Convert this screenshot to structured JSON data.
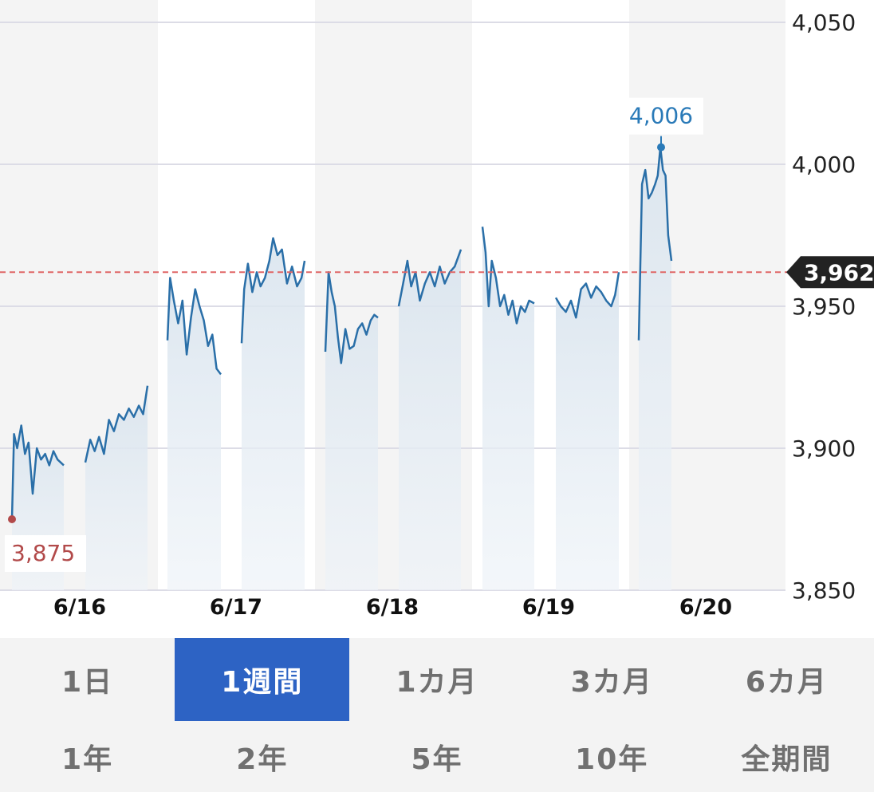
{
  "chart_data": {
    "type": "line",
    "y_ticks": [
      "4,050",
      "4,000",
      "3,950",
      "3,900",
      "3,850"
    ],
    "y_tick_values": [
      4050,
      4000,
      3950,
      3900,
      3850
    ],
    "ylim": [
      3850,
      4050
    ],
    "x_labels": [
      "6/16",
      "6/17",
      "6/18",
      "6/19",
      "6/20"
    ],
    "current_value": 3962,
    "current_label": "3,962",
    "high": {
      "value": 4006,
      "label": "4,006"
    },
    "low": {
      "value": 3875,
      "label": "3,875"
    },
    "grid": true,
    "line_color": "#2a6fa8",
    "high_color": "#2a7ab8",
    "low_color": "#b24a4a",
    "reference_line_color": "#e06666",
    "segments": [
      {
        "day": "6/16",
        "session": 1,
        "points": [
          [
            0,
            3875
          ],
          [
            0.04,
            3905
          ],
          [
            0.1,
            3900
          ],
          [
            0.18,
            3908
          ],
          [
            0.25,
            3898
          ],
          [
            0.32,
            3902
          ],
          [
            0.4,
            3884
          ],
          [
            0.48,
            3900
          ],
          [
            0.56,
            3896
          ],
          [
            0.64,
            3898
          ],
          [
            0.72,
            3894
          ],
          [
            0.8,
            3899
          ],
          [
            0.88,
            3896
          ],
          [
            1,
            3894
          ]
        ]
      },
      {
        "day": "6/16",
        "session": 2,
        "points": [
          [
            0,
            3895
          ],
          [
            0.08,
            3903
          ],
          [
            0.15,
            3899
          ],
          [
            0.22,
            3904
          ],
          [
            0.3,
            3898
          ],
          [
            0.38,
            3910
          ],
          [
            0.46,
            3906
          ],
          [
            0.54,
            3912
          ],
          [
            0.62,
            3910
          ],
          [
            0.7,
            3914
          ],
          [
            0.78,
            3911
          ],
          [
            0.86,
            3915
          ],
          [
            0.93,
            3912
          ],
          [
            1,
            3922
          ]
        ]
      },
      {
        "day": "6/17",
        "session": 1,
        "points": [
          [
            0,
            3938
          ],
          [
            0.05,
            3960
          ],
          [
            0.12,
            3952
          ],
          [
            0.2,
            3944
          ],
          [
            0.28,
            3952
          ],
          [
            0.36,
            3933
          ],
          [
            0.44,
            3946
          ],
          [
            0.52,
            3956
          ],
          [
            0.6,
            3950
          ],
          [
            0.68,
            3945
          ],
          [
            0.76,
            3936
          ],
          [
            0.84,
            3940
          ],
          [
            0.92,
            3928
          ],
          [
            1,
            3926
          ]
        ]
      },
      {
        "day": "6/17",
        "session": 2,
        "points": [
          [
            0,
            3937
          ],
          [
            0.04,
            3956
          ],
          [
            0.1,
            3965
          ],
          [
            0.17,
            3955
          ],
          [
            0.24,
            3962
          ],
          [
            0.3,
            3957
          ],
          [
            0.37,
            3960
          ],
          [
            0.44,
            3966
          ],
          [
            0.5,
            3974
          ],
          [
            0.57,
            3968
          ],
          [
            0.64,
            3970
          ],
          [
            0.72,
            3958
          ],
          [
            0.8,
            3964
          ],
          [
            0.88,
            3957
          ],
          [
            0.95,
            3960
          ],
          [
            1,
            3966
          ]
        ]
      },
      {
        "day": "6/18",
        "session": 1,
        "points": [
          [
            0,
            3934
          ],
          [
            0.06,
            3962
          ],
          [
            0.12,
            3955
          ],
          [
            0.18,
            3950
          ],
          [
            0.24,
            3939
          ],
          [
            0.3,
            3930
          ],
          [
            0.38,
            3942
          ],
          [
            0.46,
            3935
          ],
          [
            0.54,
            3936
          ],
          [
            0.62,
            3942
          ],
          [
            0.7,
            3944
          ],
          [
            0.78,
            3940
          ],
          [
            0.86,
            3945
          ],
          [
            0.93,
            3947
          ],
          [
            1,
            3946
          ]
        ]
      },
      {
        "day": "6/18",
        "session": 2,
        "points": [
          [
            0,
            3950
          ],
          [
            0.07,
            3958
          ],
          [
            0.14,
            3966
          ],
          [
            0.2,
            3957
          ],
          [
            0.27,
            3962
          ],
          [
            0.34,
            3952
          ],
          [
            0.42,
            3958
          ],
          [
            0.5,
            3962
          ],
          [
            0.58,
            3957
          ],
          [
            0.66,
            3964
          ],
          [
            0.74,
            3958
          ],
          [
            0.82,
            3962
          ],
          [
            0.9,
            3964
          ],
          [
            1,
            3970
          ]
        ]
      },
      {
        "day": "6/19",
        "session": 1,
        "points": [
          [
            0,
            3978
          ],
          [
            0.06,
            3969
          ],
          [
            0.12,
            3950
          ],
          [
            0.18,
            3966
          ],
          [
            0.26,
            3960
          ],
          [
            0.34,
            3950
          ],
          [
            0.42,
            3954
          ],
          [
            0.5,
            3947
          ],
          [
            0.58,
            3952
          ],
          [
            0.66,
            3944
          ],
          [
            0.74,
            3950
          ],
          [
            0.82,
            3948
          ],
          [
            0.9,
            3952
          ],
          [
            1,
            3951
          ]
        ]
      },
      {
        "day": "6/19",
        "session": 2,
        "points": [
          [
            0,
            3953
          ],
          [
            0.08,
            3950
          ],
          [
            0.16,
            3948
          ],
          [
            0.24,
            3952
          ],
          [
            0.32,
            3946
          ],
          [
            0.4,
            3956
          ],
          [
            0.48,
            3958
          ],
          [
            0.56,
            3953
          ],
          [
            0.64,
            3957
          ],
          [
            0.72,
            3955
          ],
          [
            0.8,
            3952
          ],
          [
            0.88,
            3950
          ],
          [
            0.94,
            3954
          ],
          [
            1,
            3962
          ]
        ]
      },
      {
        "day": "6/20",
        "session": 1,
        "points": [
          [
            0,
            3938
          ],
          [
            0.1,
            3993
          ],
          [
            0.2,
            3998
          ],
          [
            0.3,
            3988
          ],
          [
            0.4,
            3990
          ],
          [
            0.5,
            3993
          ],
          [
            0.58,
            3996
          ],
          [
            0.66,
            4006
          ],
          [
            0.74,
            3998
          ],
          [
            0.82,
            3996
          ],
          [
            0.9,
            3975
          ],
          [
            1,
            3966
          ]
        ]
      }
    ]
  },
  "tabs": {
    "row1": [
      "1日",
      "1週間",
      "1カ月",
      "3カ月",
      "6カ月"
    ],
    "row2": [
      "1年",
      "2年",
      "5年",
      "10年",
      "全期間"
    ],
    "active": "1週間"
  }
}
